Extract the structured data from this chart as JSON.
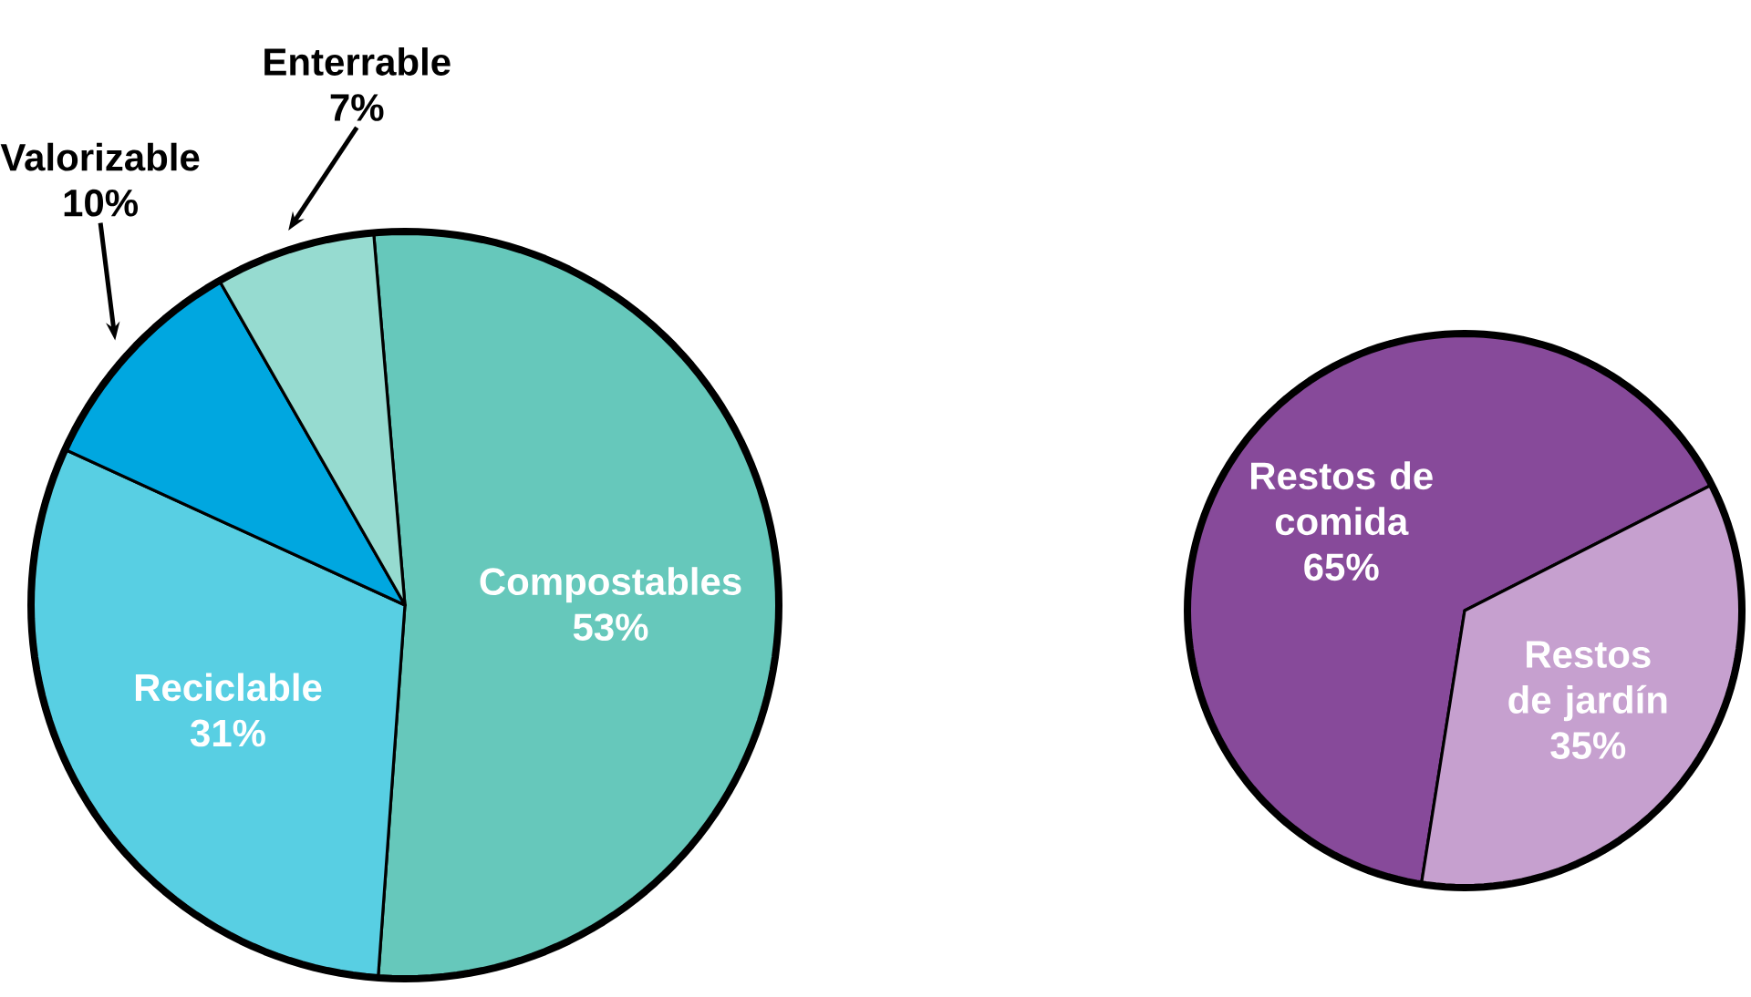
{
  "chart_data": [
    {
      "type": "pie",
      "categories": [
        "Compostables",
        "Reciclable",
        "Valorizable",
        "Enterrable"
      ],
      "values": [
        53,
        31,
        10,
        7
      ],
      "value_labels": [
        "53%",
        "31%",
        "10%",
        "7%"
      ],
      "colors": [
        "#66c8bb",
        "#58cfe3",
        "#00a7e0",
        "#96dbd0"
      ]
    },
    {
      "type": "pie",
      "categories": [
        "Restos de comida",
        "Restos de jardín"
      ],
      "values": [
        65,
        35
      ],
      "value_labels": [
        "65%",
        "35%"
      ],
      "colors": [
        "#874a9a",
        "#c6a0cf"
      ]
    }
  ]
}
